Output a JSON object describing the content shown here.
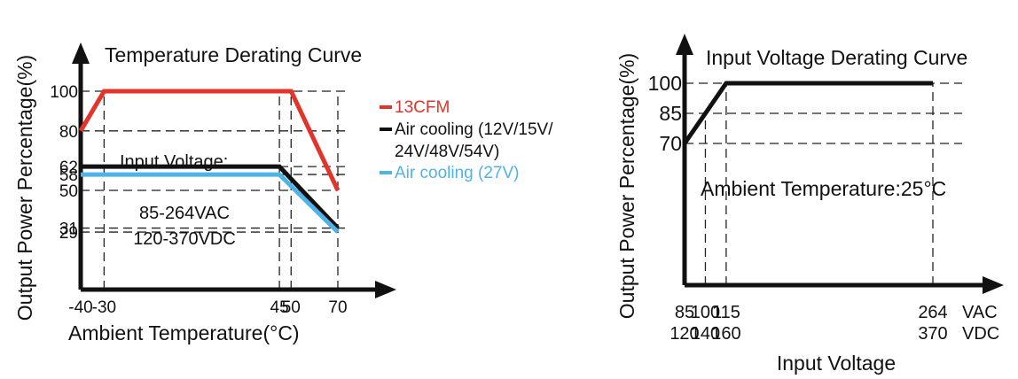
{
  "colors": {
    "red": "#e2342b",
    "black": "#111111",
    "blue": "#4fb3e8"
  },
  "chart_data": [
    {
      "type": "line",
      "title": "Temperature Derating Curve",
      "xlabel": "Ambient Temperature(°C)",
      "ylabel": "Output Power Percentage(%)",
      "xlim": [
        -40,
        75
      ],
      "ylim": [
        0,
        115
      ],
      "x_ticks": [
        -40,
        -30,
        45,
        50,
        70
      ],
      "y_ticks": [
        29,
        31,
        50,
        58,
        62,
        80,
        100
      ],
      "grid": "dashed at tick values",
      "legend_position": "right",
      "annotations": [
        "Input Voltage:",
        "85-264VAC",
        "120-370VDC"
      ],
      "series": [
        {
          "name": "13CFM",
          "color_key": "red",
          "points": [
            [
              -40,
              80
            ],
            [
              -30,
              100
            ],
            [
              50,
              100
            ],
            [
              70,
              50
            ]
          ]
        },
        {
          "name_lines": [
            "Air cooling (12V/15V/",
            "24V/48V/54V)"
          ],
          "color_key": "black",
          "points": [
            [
              -40,
              62
            ],
            [
              45,
              62
            ],
            [
              70,
              31
            ]
          ]
        },
        {
          "name": "Air cooling (27V)",
          "color_key": "blue",
          "points": [
            [
              -40,
              58
            ],
            [
              45,
              58
            ],
            [
              70,
              29
            ]
          ]
        }
      ]
    },
    {
      "type": "line",
      "title": "Input Voltage Derating Curve",
      "xlabel": "Input Voltage",
      "ylabel": "Output Power Percentage(%)",
      "x_ticks": [
        85,
        100,
        115,
        264
      ],
      "x_ticks_row2": [
        120,
        140,
        160,
        370
      ],
      "x_unit_labels": [
        "VAC",
        "VDC"
      ],
      "xlim": [
        85,
        282
      ],
      "ylim": [
        0,
        110
      ],
      "y_ticks": [
        70,
        85,
        100
      ],
      "grid": "dashed at tick values",
      "annotations": [
        "Ambient Temperature:25°C"
      ],
      "series": [
        {
          "color_key": "black",
          "points": [
            [
              85,
              70
            ],
            [
              100,
              85
            ],
            [
              115,
              100
            ],
            [
              264,
              100
            ]
          ]
        }
      ]
    }
  ]
}
